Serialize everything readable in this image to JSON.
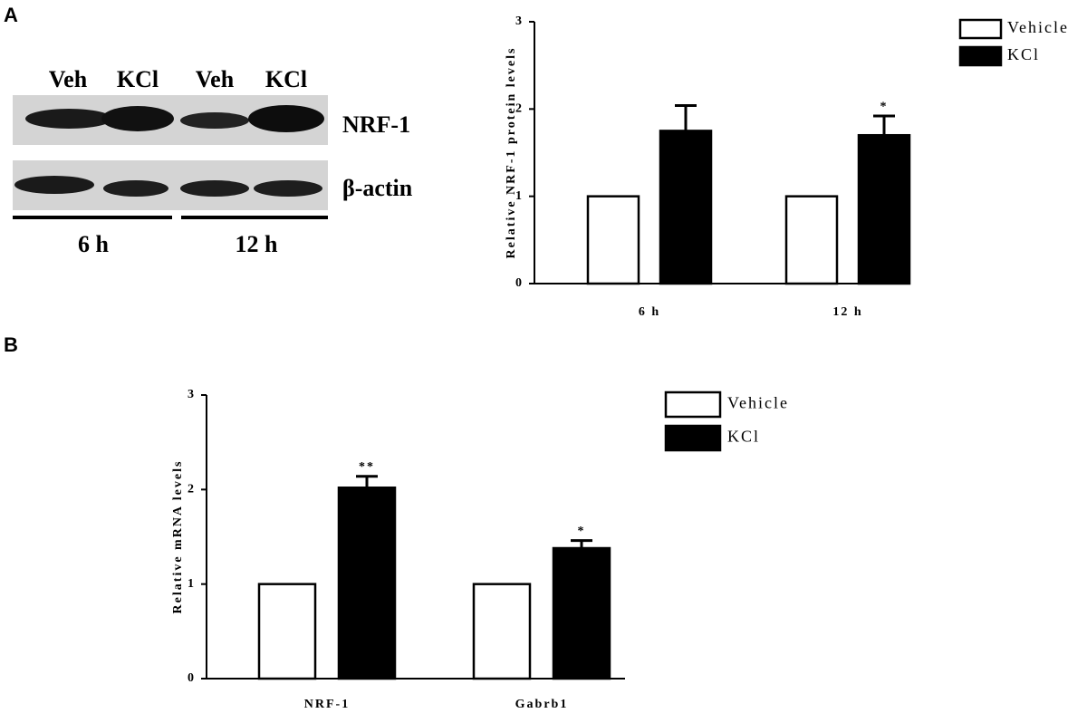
{
  "panels": [
    "A",
    "B"
  ],
  "blot": {
    "lanes": [
      "Veh",
      "KCl",
      "Veh",
      "KCl"
    ],
    "rows": [
      "NRF-1",
      "β-actin"
    ],
    "times": [
      "6 h",
      "12 h"
    ]
  },
  "chart_data": [
    {
      "type": "bar",
      "y_label": "Relative NRF-1 protein levels",
      "categories": [
        "6 h",
        "12 h"
      ],
      "series": [
        {
          "name": "Vehicle",
          "color": "#ffffff",
          "values": [
            1,
            1
          ]
        },
        {
          "name": "KCl",
          "color": "#000000",
          "values": [
            1.75,
            1.7
          ],
          "errors": [
            0.29,
            0.22
          ],
          "significance": [
            null,
            "*"
          ]
        }
      ],
      "ylim": [
        0,
        3
      ],
      "yticks": [
        0,
        1,
        2,
        3
      ],
      "legend": "upper right"
    },
    {
      "type": "bar",
      "y_label": "Relative mRNA levels",
      "categories": [
        "NRF-1",
        "Gabrb1"
      ],
      "series": [
        {
          "name": "Vehicle",
          "color": "#ffffff",
          "values": [
            1,
            1
          ]
        },
        {
          "name": "KCl",
          "color": "#000000",
          "values": [
            2.02,
            1.38
          ],
          "errors": [
            0.12,
            0.08
          ],
          "significance": [
            "**",
            "*"
          ]
        }
      ],
      "ylim": [
        0,
        3
      ],
      "yticks": [
        0,
        1,
        2,
        3
      ],
      "legend": "upper right"
    }
  ]
}
